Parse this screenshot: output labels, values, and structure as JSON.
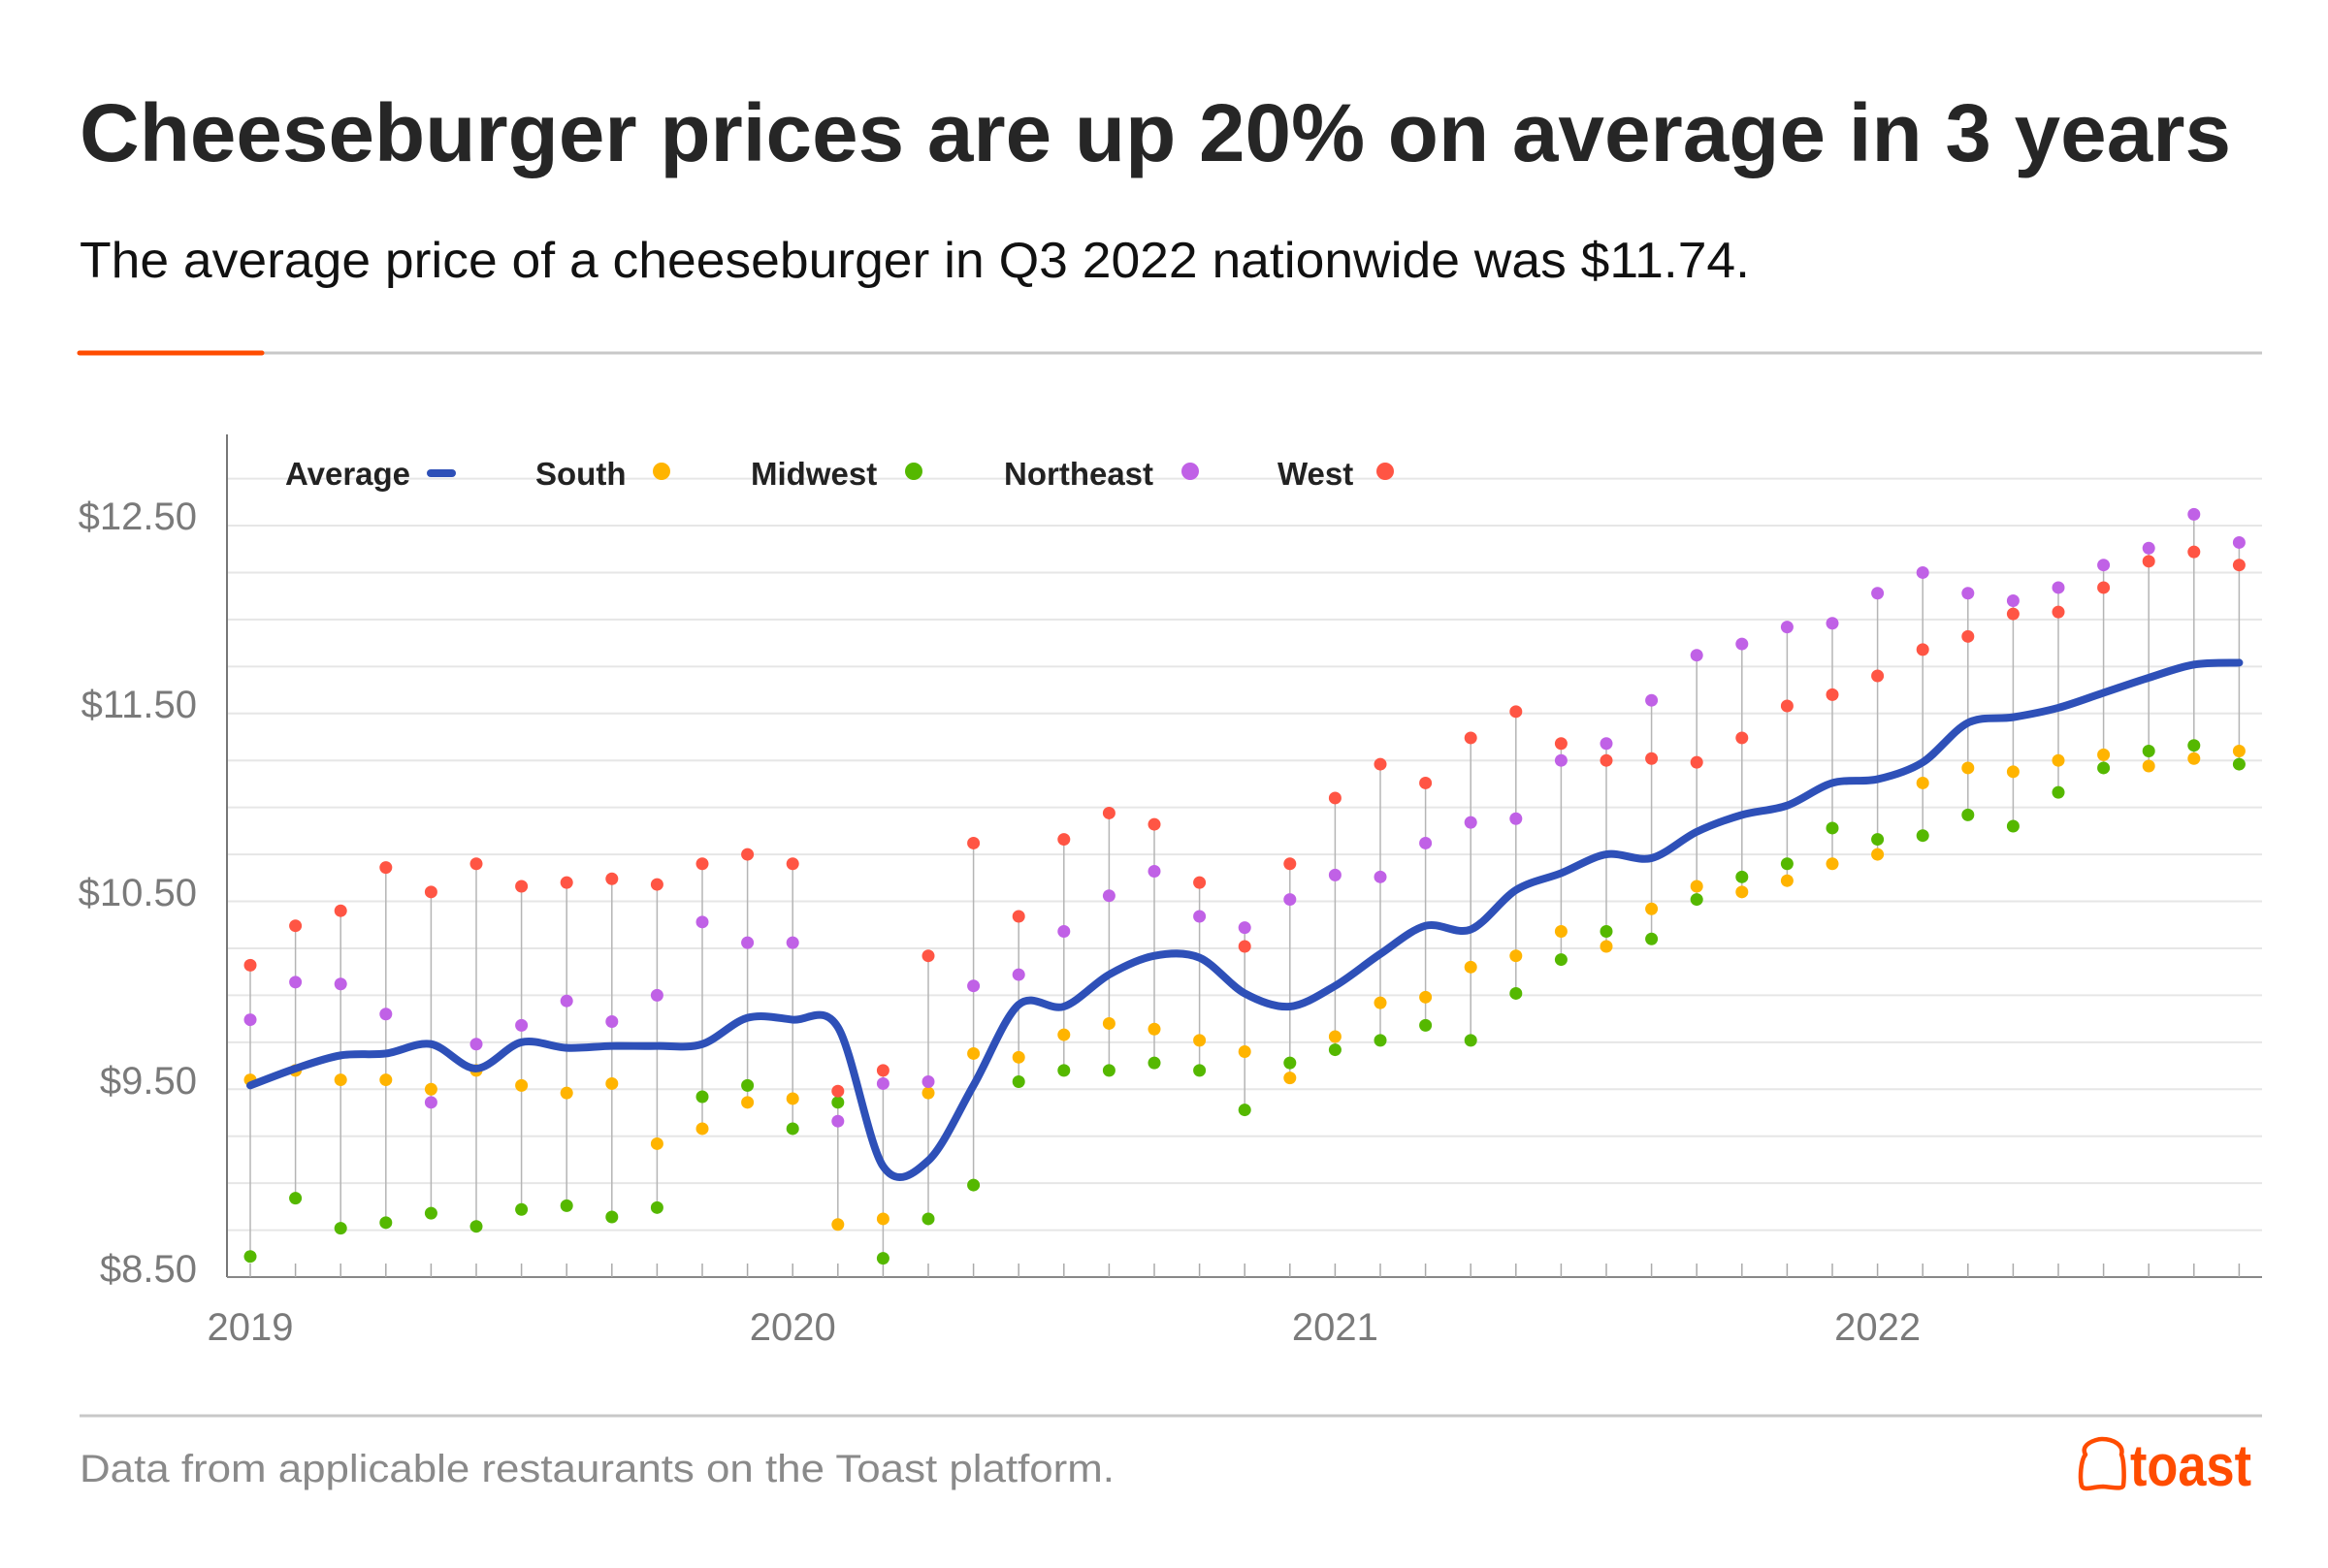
{
  "header": {
    "title": "Cheeseburger prices are up 20% on average in 3 years",
    "subtitle": "The average price of a cheeseburger in Q3 2022 nationwide was $11.74."
  },
  "footer": {
    "source": "Data from applicable restaurants on the Toast platform.",
    "logo_text": "toast"
  },
  "colors": {
    "accent": "#ff4c00",
    "average": "#2e50b8",
    "south": "#ffb400",
    "midwest": "#55b800",
    "northeast": "#c061e6",
    "west": "#ff5544"
  },
  "chart_data": {
    "type": "line",
    "title": "",
    "xlabel": "",
    "ylabel": "",
    "x_start": "2019-01",
    "x_end": "2022-09",
    "x_tick_labels": [
      "2019",
      "2020",
      "2021",
      "2022"
    ],
    "y_tick_labels": [
      "$12.50",
      "$11.50",
      "$10.50",
      "$9.50",
      "$8.50"
    ],
    "y_ticks": [
      12.5,
      11.5,
      10.5,
      9.5,
      8.5
    ],
    "ylim": [
      8.5,
      12.9
    ],
    "grid": true,
    "legend_position": "top-left",
    "legend": [
      "Average",
      "South",
      "Midwest",
      "Northeast",
      "West"
    ],
    "x": [
      "2019-01",
      "2019-02",
      "2019-03",
      "2019-04",
      "2019-05",
      "2019-06",
      "2019-07",
      "2019-08",
      "2019-09",
      "2019-10",
      "2019-11",
      "2019-12",
      "2020-01",
      "2020-02",
      "2020-03",
      "2020-04",
      "2020-05",
      "2020-06",
      "2020-07",
      "2020-08",
      "2020-09",
      "2020-10",
      "2020-11",
      "2020-12",
      "2021-01",
      "2021-02",
      "2021-03",
      "2021-04",
      "2021-05",
      "2021-06",
      "2021-07",
      "2021-08",
      "2021-09",
      "2021-10",
      "2021-11",
      "2021-12",
      "2022-01",
      "2022-02",
      "2022-03",
      "2022-04",
      "2022-05",
      "2022-06",
      "2022-07",
      "2022-08",
      "2022-09"
    ],
    "series": [
      {
        "name": "Average",
        "key": "average",
        "style": "line",
        "values": [
          9.52,
          9.61,
          9.68,
          9.69,
          9.74,
          9.61,
          9.75,
          9.72,
          9.73,
          9.73,
          9.74,
          9.88,
          9.87,
          9.83,
          9.09,
          9.12,
          9.52,
          9.95,
          9.94,
          10.11,
          10.21,
          10.2,
          10.01,
          9.94,
          10.05,
          10.22,
          10.37,
          10.35,
          10.56,
          10.65,
          10.75,
          10.73,
          10.87,
          10.96,
          11.01,
          11.13,
          11.15,
          11.24,
          11.45,
          11.48,
          11.53,
          11.61,
          11.69,
          11.76,
          11.77
        ]
      },
      {
        "name": "South",
        "key": "south",
        "style": "dot",
        "values": [
          9.55,
          9.6,
          9.55,
          9.55,
          9.5,
          9.6,
          9.52,
          9.48,
          9.53,
          9.21,
          9.29,
          9.43,
          9.45,
          8.78,
          8.81,
          9.48,
          9.69,
          9.67,
          9.79,
          9.85,
          9.82,
          9.76,
          9.7,
          9.56,
          9.78,
          9.96,
          9.99,
          10.15,
          10.21,
          10.34,
          10.26,
          10.46,
          10.58,
          10.55,
          10.61,
          10.7,
          10.75,
          11.13,
          11.21,
          11.19,
          11.25,
          11.28,
          11.22,
          11.26,
          11.3
        ]
      },
      {
        "name": "Midwest",
        "key": "midwest",
        "style": "dot",
        "values": [
          8.61,
          8.92,
          8.76,
          8.79,
          8.84,
          8.77,
          8.86,
          8.88,
          8.82,
          8.87,
          9.46,
          9.52,
          9.29,
          9.43,
          8.6,
          8.81,
          8.99,
          9.54,
          9.6,
          9.6,
          9.64,
          9.6,
          9.39,
          9.64,
          9.71,
          9.76,
          9.84,
          9.76,
          10.01,
          10.19,
          10.34,
          10.3,
          10.51,
          10.63,
          10.7,
          10.89,
          10.83,
          10.85,
          10.96,
          10.9,
          11.08,
          11.21,
          11.3,
          11.33,
          11.23
        ]
      },
      {
        "name": "Northeast",
        "key": "northeast",
        "style": "dot",
        "values": [
          9.87,
          10.07,
          10.06,
          9.9,
          9.43,
          9.74,
          9.84,
          9.97,
          9.86,
          10.0,
          10.39,
          10.28,
          10.28,
          9.33,
          9.53,
          9.54,
          10.05,
          10.11,
          10.34,
          10.53,
          10.66,
          10.42,
          10.36,
          10.51,
          10.64,
          10.63,
          10.81,
          10.92,
          10.94,
          11.25,
          11.34,
          11.57,
          11.81,
          11.87,
          11.96,
          11.98,
          12.14,
          12.25,
          12.14,
          12.1,
          12.17,
          12.29,
          12.38,
          12.56,
          12.41
        ]
      },
      {
        "name": "West",
        "key": "west",
        "style": "dot",
        "values": [
          10.16,
          10.37,
          10.45,
          10.68,
          10.55,
          10.7,
          10.58,
          10.6,
          10.62,
          10.59,
          10.7,
          10.75,
          10.7,
          9.49,
          9.6,
          10.21,
          10.81,
          10.42,
          10.83,
          10.97,
          10.91,
          10.6,
          10.26,
          10.7,
          11.05,
          11.23,
          11.13,
          11.37,
          11.51,
          11.34,
          11.25,
          11.26,
          11.24,
          11.37,
          11.54,
          11.6,
          11.7,
          11.84,
          11.91,
          12.03,
          12.04,
          12.17,
          12.31,
          12.36,
          12.29
        ]
      }
    ]
  }
}
